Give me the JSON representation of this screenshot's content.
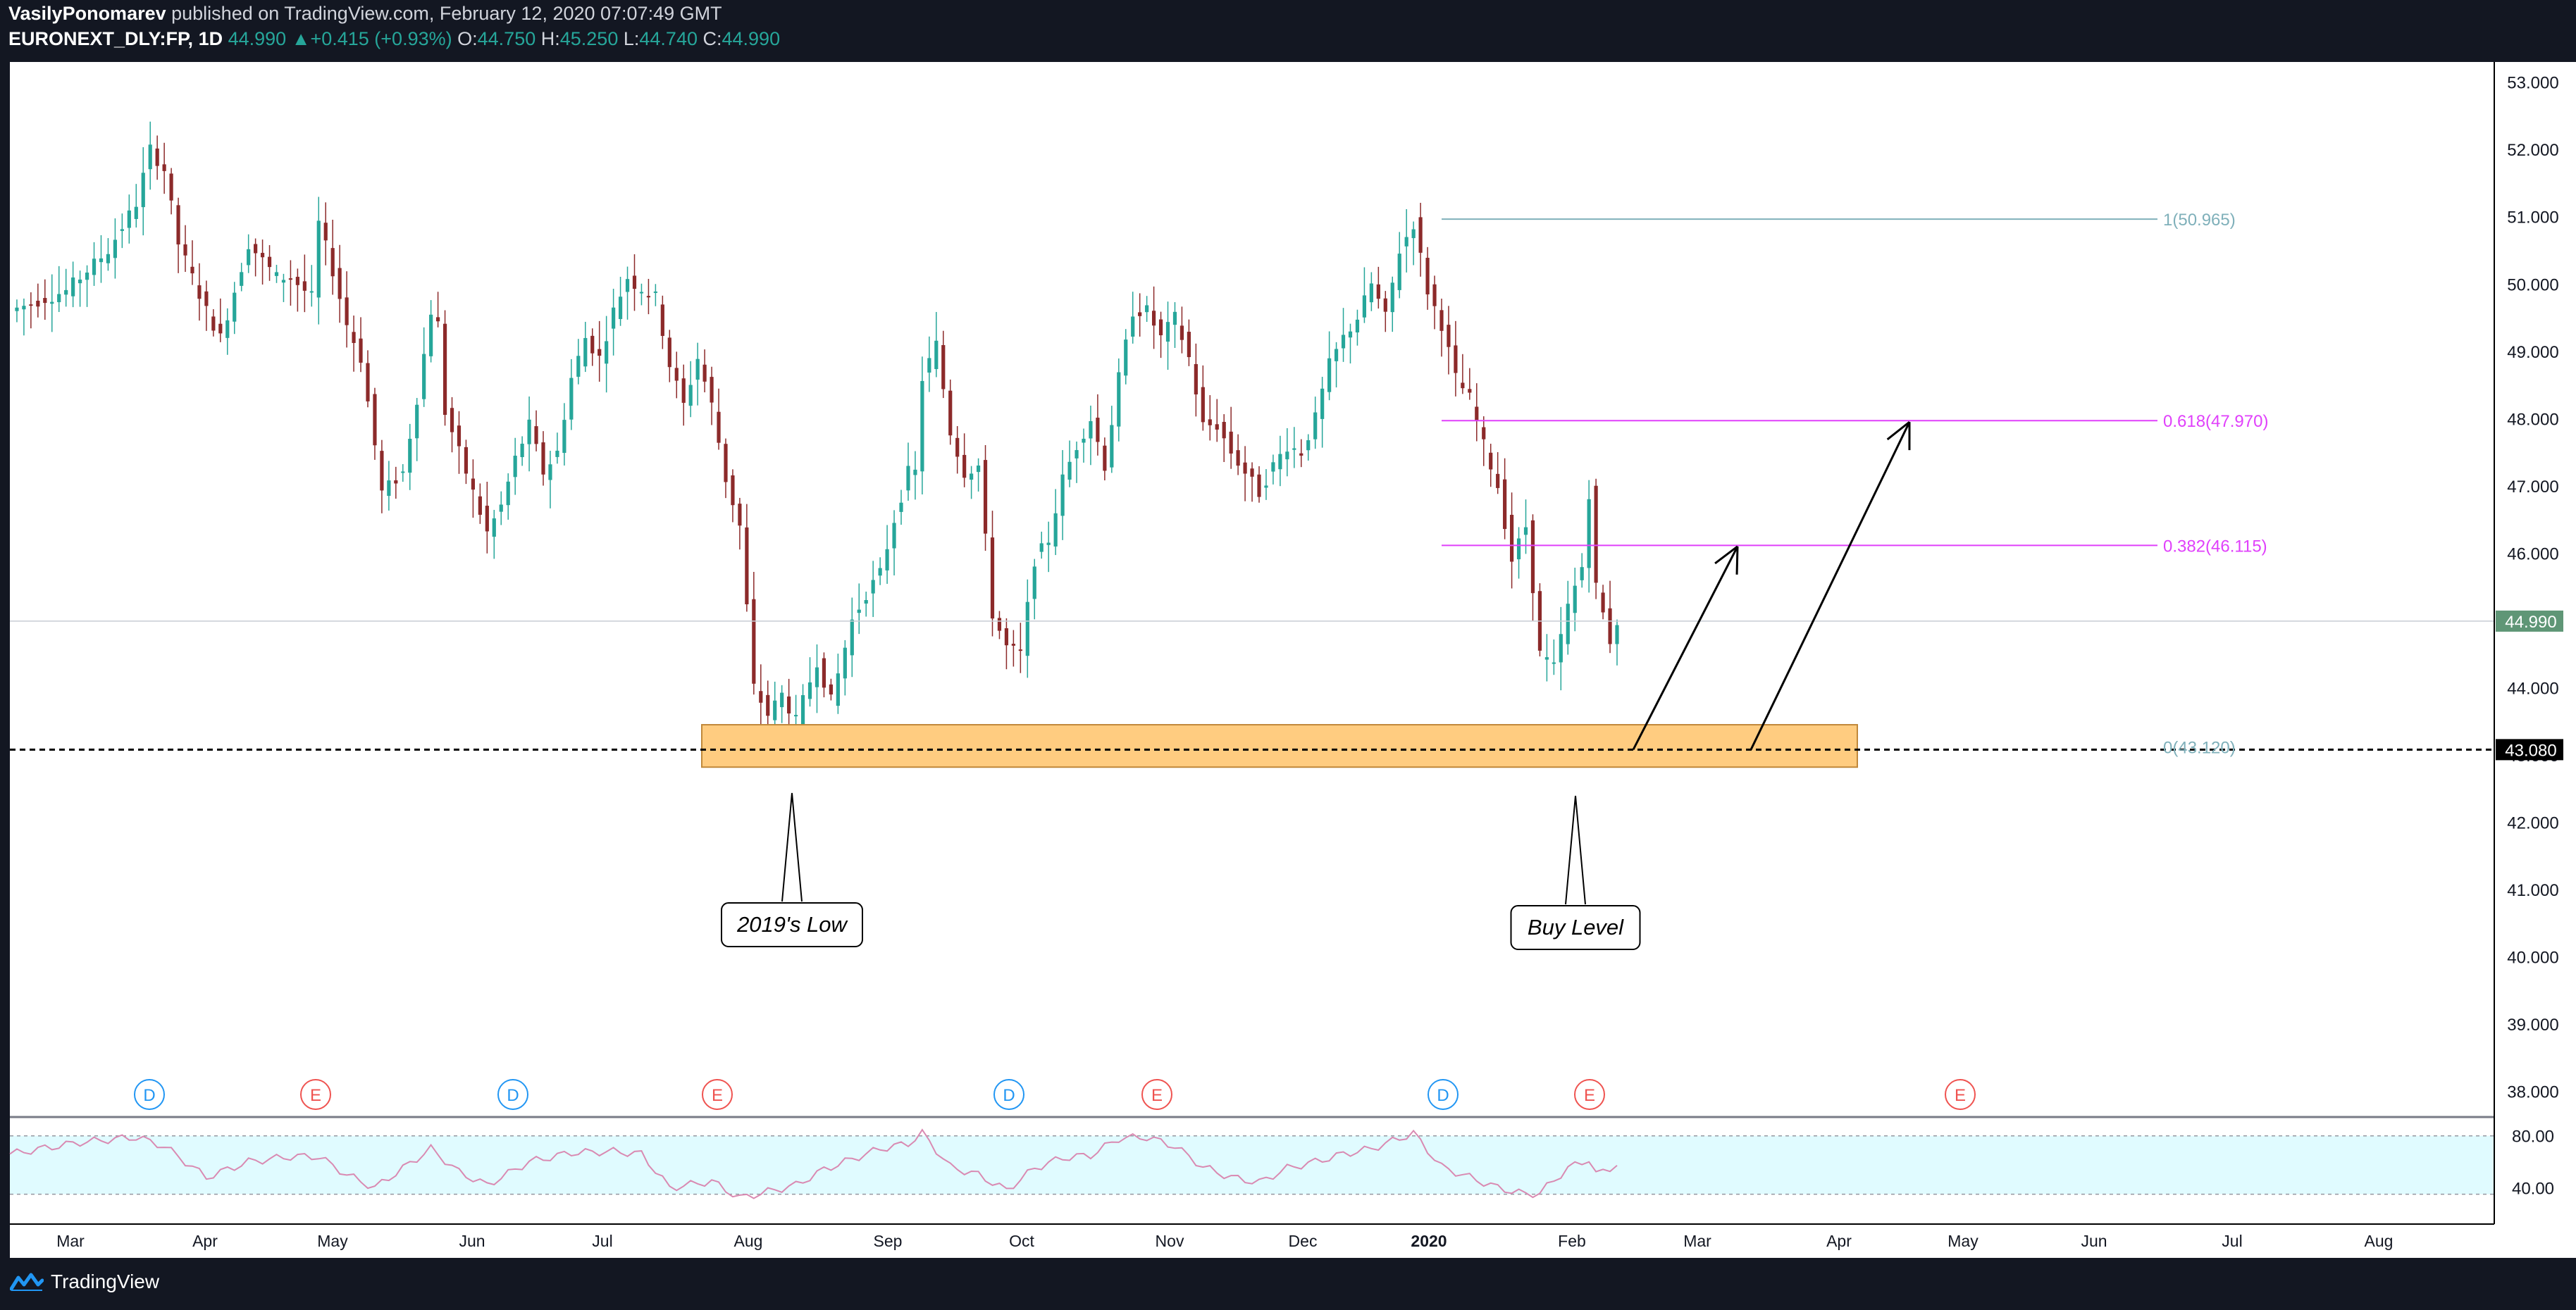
{
  "header": {
    "author": "VasilyPonomarev",
    "published": " published on TradingView.com, February 12, 2020 07:07:49 GMT",
    "symbol": "EURONEXT_DLY:FP, 1D",
    "last": "44.990",
    "change": "+0.415 (+0.93%)",
    "o_label": "O:",
    "o_val": "44.750",
    "h_label": "H:",
    "h_val": "45.250",
    "l_label": "L:",
    "l_val": "44.740",
    "c_label": "C:",
    "c_val": "44.990"
  },
  "footer": {
    "brand": "TradingView",
    "brand_icon": "tradingview-logo-icon"
  },
  "colors": {
    "background": "#ffffff",
    "frame": "#131722",
    "bull": "#26a69a",
    "bear": "#8c2a2a",
    "fib_top": "#7fb0ba",
    "fib_magenta": "#e040fb",
    "zone_fill": "#ffcc80",
    "zone_border": "#c0883a",
    "rsi_fill": "#e0fbff",
    "rsi_line": "#d98ab2",
    "dividend": "#2196f3",
    "earnings": "#ef5350"
  },
  "chart_data": {
    "type": "candlestick",
    "title": "",
    "xlabel": "",
    "ylabel": "",
    "ylim": [
      37.62,
      53.3
    ],
    "grid": false,
    "x_ticks": [
      "Mar",
      "Apr",
      "May",
      "Jun",
      "Jul",
      "Aug",
      "Sep",
      "Oct",
      "Nov",
      "Dec",
      "2020",
      "Feb",
      "Mar",
      "Apr",
      "May",
      "Jun",
      "Jul",
      "Aug"
    ],
    "y_ticks": [
      "53.000",
      "52.000",
      "51.000",
      "50.000",
      "49.000",
      "48.000",
      "47.000",
      "46.000",
      "45.000",
      "44.000",
      "43.000",
      "42.000",
      "41.000",
      "40.000",
      "39.000",
      "38.000"
    ],
    "price_path": [
      [
        0,
        49.6
      ],
      [
        8,
        49.9
      ],
      [
        14,
        50.5
      ],
      [
        18,
        51.2
      ],
      [
        20,
        52.0
      ],
      [
        22,
        51.7
      ],
      [
        24,
        50.6
      ],
      [
        28,
        49.6
      ],
      [
        30,
        49.2
      ],
      [
        34,
        50.6
      ],
      [
        38,
        50.1
      ],
      [
        40,
        50.1
      ],
      [
        43,
        49.8
      ],
      [
        44,
        50.9
      ],
      [
        46,
        50.2
      ],
      [
        48,
        49.4
      ],
      [
        50,
        48.9
      ],
      [
        52,
        47.6
      ],
      [
        53,
        46.9
      ],
      [
        56,
        47.2
      ],
      [
        58,
        48.3
      ],
      [
        60,
        49.6
      ],
      [
        61,
        49.4
      ],
      [
        62,
        48.1
      ],
      [
        64,
        47.5
      ],
      [
        66,
        46.9
      ],
      [
        68,
        46.3
      ],
      [
        70,
        46.7
      ],
      [
        72,
        47.4
      ],
      [
        74,
        47.9
      ],
      [
        76,
        47.2
      ],
      [
        78,
        47.5
      ],
      [
        80,
        48.6
      ],
      [
        82,
        49.2
      ],
      [
        84,
        48.9
      ],
      [
        86,
        49.6
      ],
      [
        88,
        50.1
      ],
      [
        89,
        50.0
      ],
      [
        92,
        49.8
      ],
      [
        94,
        48.8
      ],
      [
        96,
        48.2
      ],
      [
        98,
        48.9
      ],
      [
        100,
        48.2
      ],
      [
        102,
        47.1
      ],
      [
        104,
        46.4
      ],
      [
        105,
        45.2
      ],
      [
        106,
        44.0
      ],
      [
        108,
        43.6
      ],
      [
        110,
        43.9
      ],
      [
        112,
        43.5
      ],
      [
        115,
        44.4
      ],
      [
        117,
        43.8
      ],
      [
        120,
        45.0
      ],
      [
        122,
        45.4
      ],
      [
        124,
        45.7
      ],
      [
        126,
        46.5
      ],
      [
        128,
        47.2
      ],
      [
        129,
        47.2
      ],
      [
        130,
        48.6
      ],
      [
        132,
        49.1
      ],
      [
        134,
        47.8
      ],
      [
        136,
        47.2
      ],
      [
        138,
        47.3
      ],
      [
        140,
        45.1
      ],
      [
        142,
        44.6
      ],
      [
        144,
        44.5
      ],
      [
        146,
        45.9
      ],
      [
        148,
        46.2
      ],
      [
        150,
        47.1
      ],
      [
        152,
        47.6
      ],
      [
        154,
        48.0
      ],
      [
        156,
        47.3
      ],
      [
        158,
        48.6
      ],
      [
        160,
        49.6
      ],
      [
        162,
        49.6
      ],
      [
        164,
        49.2
      ],
      [
        166,
        49.5
      ],
      [
        168,
        48.9
      ],
      [
        170,
        47.9
      ],
      [
        172,
        47.9
      ],
      [
        174,
        47.5
      ],
      [
        176,
        47.2
      ],
      [
        178,
        46.9
      ],
      [
        180,
        47.3
      ],
      [
        182,
        47.6
      ],
      [
        184,
        47.5
      ],
      [
        186,
        48.0
      ],
      [
        188,
        48.8
      ],
      [
        190,
        49.2
      ],
      [
        192,
        49.5
      ],
      [
        194,
        50.0
      ],
      [
        196,
        49.5
      ],
      [
        198,
        50.5
      ],
      [
        200,
        50.9
      ],
      [
        202,
        49.9
      ],
      [
        204,
        49.4
      ],
      [
        206,
        48.6
      ],
      [
        208,
        48.3
      ],
      [
        210,
        47.6
      ],
      [
        212,
        47.0
      ],
      [
        214,
        45.9
      ],
      [
        216,
        46.4
      ],
      [
        217,
        45.5
      ],
      [
        218,
        44.5
      ],
      [
        220,
        44.3
      ],
      [
        222,
        45.2
      ],
      [
        224,
        45.8
      ],
      [
        225,
        46.9
      ],
      [
        226,
        45.5
      ],
      [
        228,
        44.7
      ],
      [
        229,
        44.99
      ]
    ],
    "annotations": {
      "zone": {
        "top": 43.45,
        "bottom": 42.82,
        "start_month": "Aug",
        "end_month": "Mar"
      },
      "horizontal_line": 43.08,
      "price_label": "44.990",
      "level_label": "43.080",
      "fib": [
        {
          "label": "1(50.965)",
          "value": 50.965
        },
        {
          "label": "0.618(47.970)",
          "value": 47.97
        },
        {
          "label": "0.382(46.115)",
          "value": 46.115
        },
        {
          "label": "0(43.120)",
          "value": 43.12
        }
      ],
      "callouts": [
        {
          "text": "2019's Low"
        },
        {
          "text": "Buy Level"
        }
      ],
      "arrows": [
        {
          "from": 43.08,
          "to": 46.1
        },
        {
          "from": 43.08,
          "to": 47.95
        }
      ],
      "events": [
        {
          "letter": "D",
          "kind": "dividend"
        },
        {
          "letter": "E",
          "kind": "earnings"
        },
        {
          "letter": "D",
          "kind": "dividend"
        },
        {
          "letter": "E",
          "kind": "earnings"
        },
        {
          "letter": "D",
          "kind": "dividend"
        },
        {
          "letter": "E",
          "kind": "earnings"
        },
        {
          "letter": "D",
          "kind": "dividend"
        },
        {
          "letter": "E",
          "kind": "earnings"
        },
        {
          "letter": "E",
          "kind": "earnings"
        }
      ]
    },
    "rsi": {
      "ylim": [
        12.0,
        94.5
      ],
      "levels": [
        80.0,
        35.0
      ],
      "tick_labels": [
        "80.00",
        "40.00"
      ],
      "path": [
        [
          0,
          66
        ],
        [
          10,
          75
        ],
        [
          18,
          79
        ],
        [
          22,
          72
        ],
        [
          28,
          48
        ],
        [
          34,
          60
        ],
        [
          40,
          64
        ],
        [
          44,
          64
        ],
        [
          48,
          50
        ],
        [
          52,
          40
        ],
        [
          56,
          55
        ],
        [
          60,
          70
        ],
        [
          64,
          52
        ],
        [
          68,
          42
        ],
        [
          74,
          60
        ],
        [
          80,
          67
        ],
        [
          86,
          68
        ],
        [
          90,
          66
        ],
        [
          94,
          40
        ],
        [
          100,
          45
        ],
        [
          104,
          32
        ],
        [
          108,
          37
        ],
        [
          112,
          42
        ],
        [
          116,
          54
        ],
        [
          120,
          62
        ],
        [
          124,
          70
        ],
        [
          128,
          74
        ],
        [
          130,
          82
        ],
        [
          134,
          56
        ],
        [
          138,
          50
        ],
        [
          142,
          38
        ],
        [
          146,
          55
        ],
        [
          150,
          63
        ],
        [
          154,
          65
        ],
        [
          158,
          78
        ],
        [
          162,
          79
        ],
        [
          166,
          72
        ],
        [
          170,
          56
        ],
        [
          174,
          48
        ],
        [
          178,
          44
        ],
        [
          182,
          55
        ],
        [
          186,
          60
        ],
        [
          190,
          66
        ],
        [
          194,
          70
        ],
        [
          198,
          78
        ],
        [
          200,
          82
        ],
        [
          204,
          56
        ],
        [
          208,
          48
        ],
        [
          212,
          40
        ],
        [
          216,
          35
        ],
        [
          218,
          36
        ],
        [
          222,
          55
        ],
        [
          225,
          62
        ],
        [
          226,
          50
        ],
        [
          229,
          58
        ]
      ]
    }
  }
}
